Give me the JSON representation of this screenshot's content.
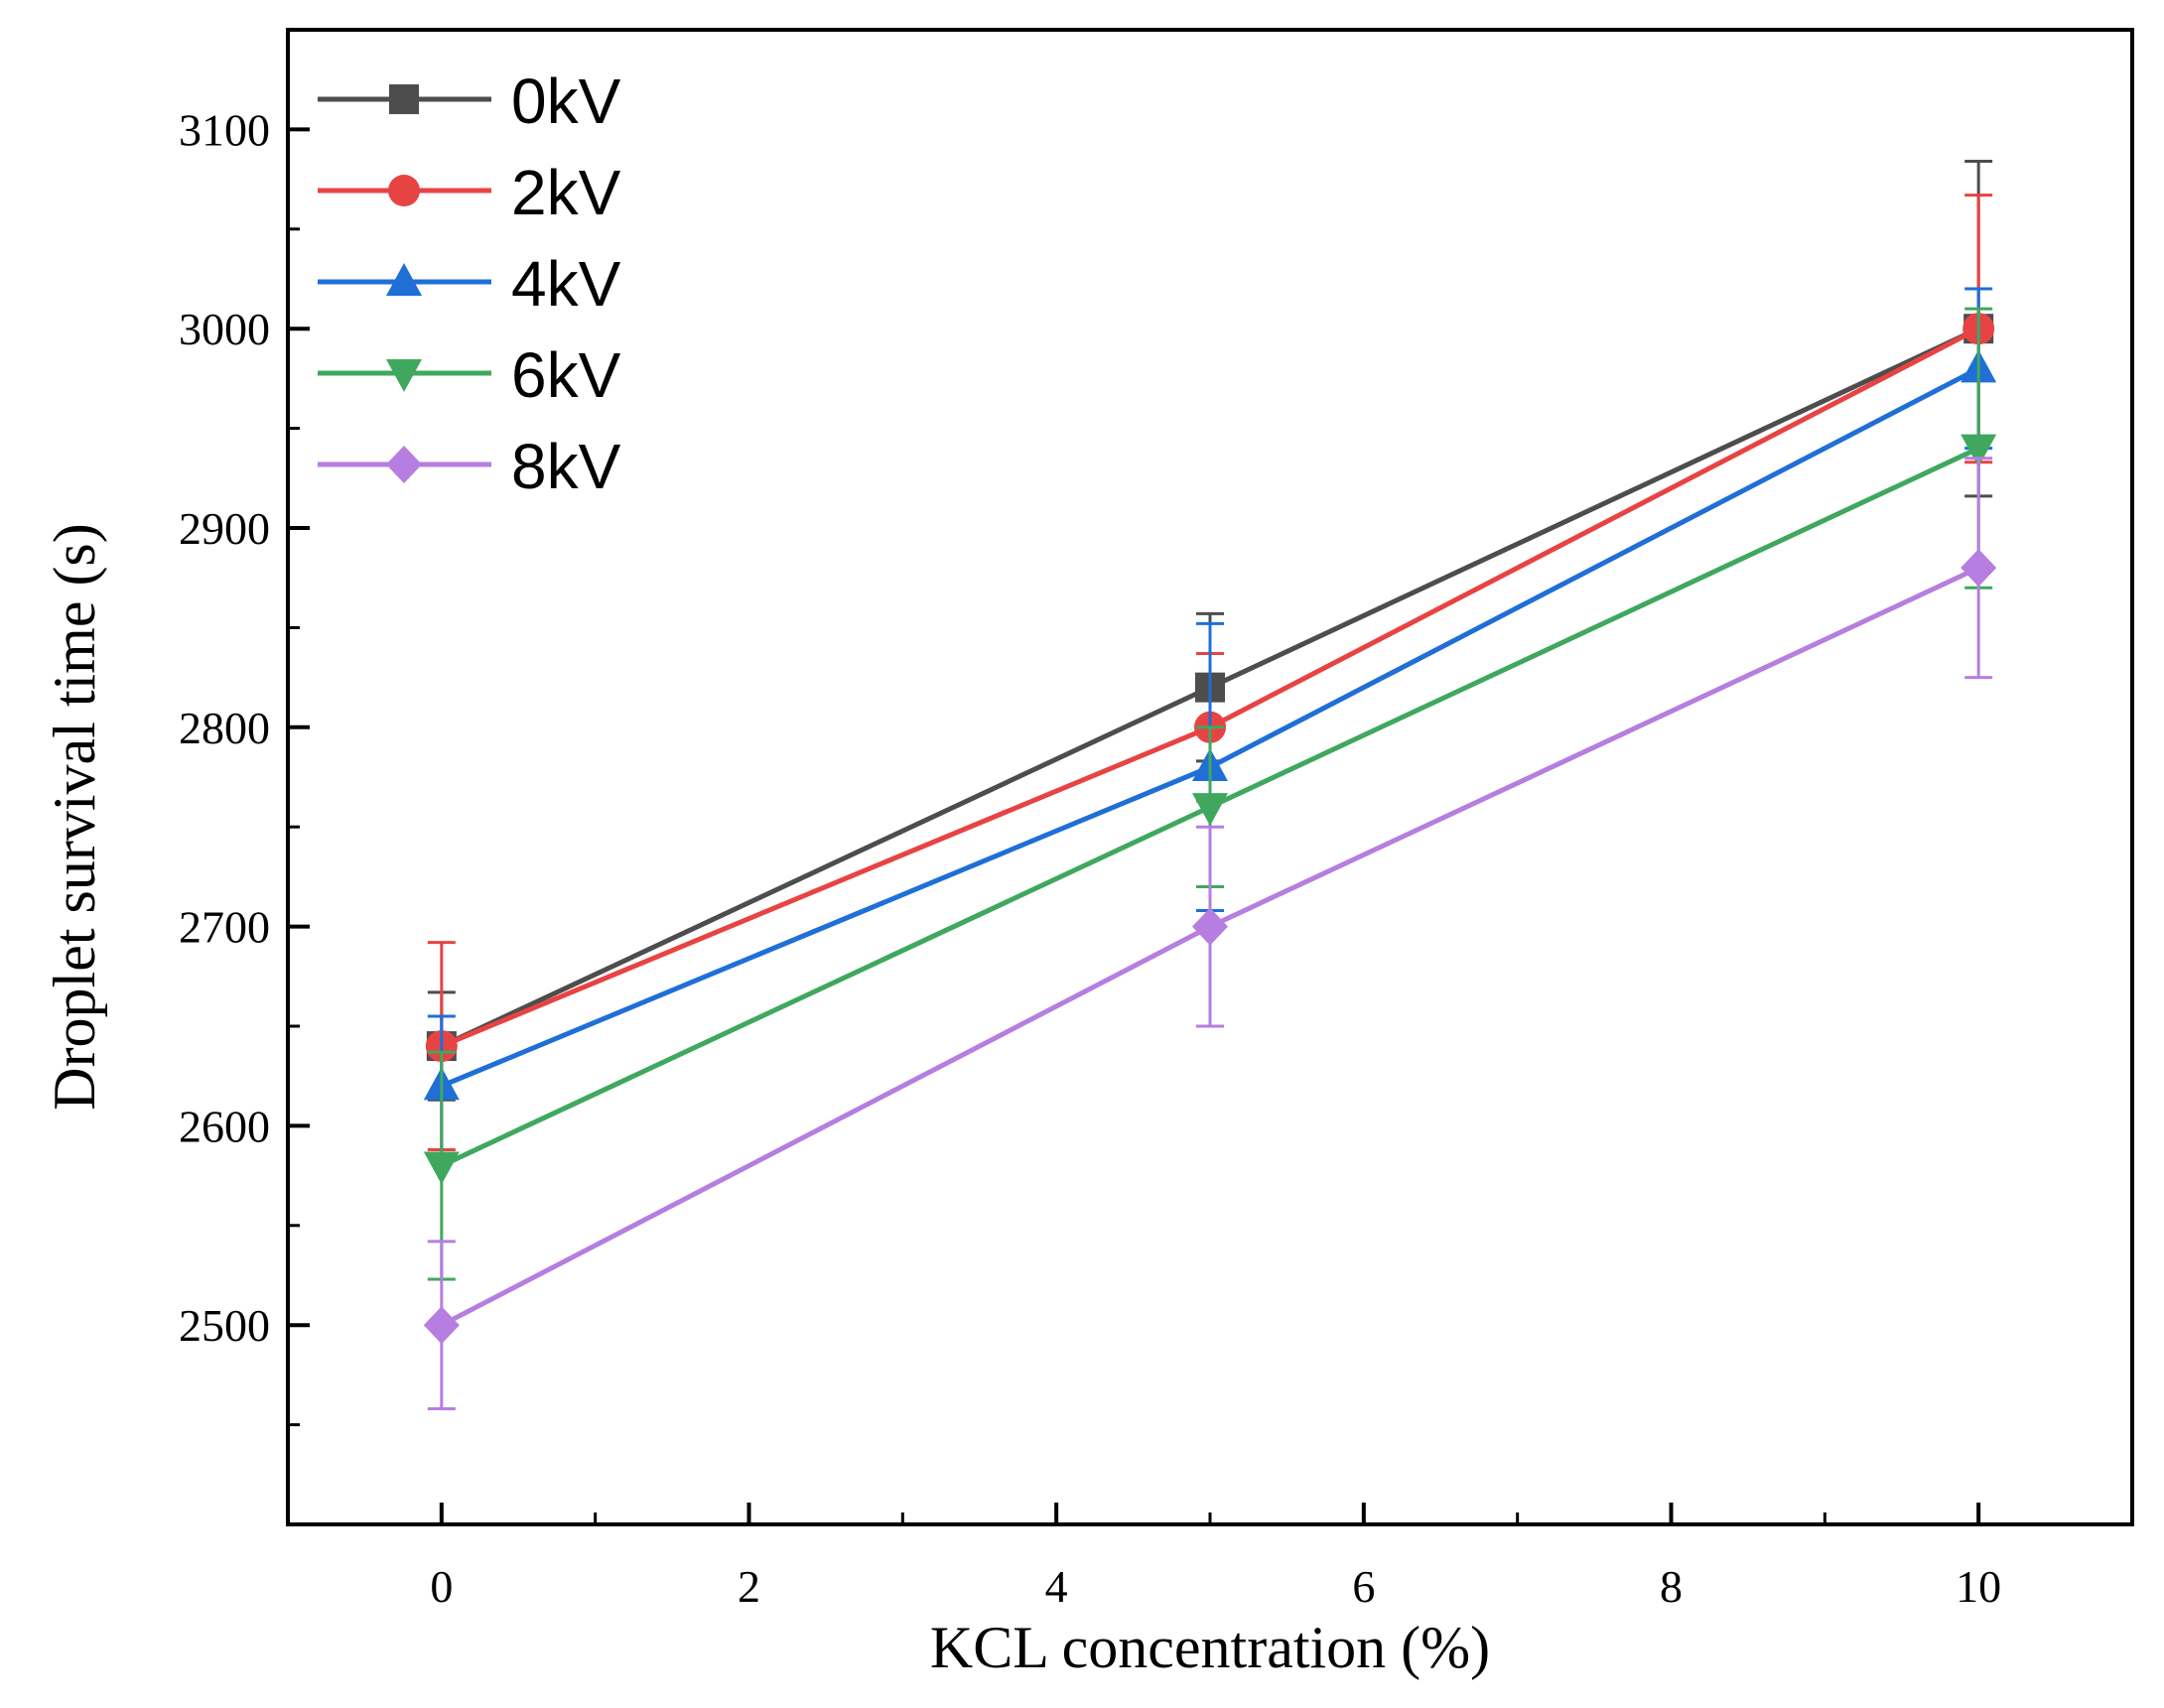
{
  "chart_data": {
    "type": "line",
    "title": "",
    "xlabel": "KCL concentration (%)",
    "ylabel": "Droplet survival time (s)",
    "xlim": [
      -1,
      11
    ],
    "ylim": [
      2400,
      3150
    ],
    "x_ticks": [
      0,
      2,
      4,
      6,
      8,
      10
    ],
    "y_ticks": [
      2500,
      2600,
      2700,
      2800,
      2900,
      3000,
      3100
    ],
    "grid": false,
    "legend_position": "top-left",
    "error_bars": true,
    "series": [
      {
        "name": "0kV",
        "color": "#4d4d4d",
        "marker": "square",
        "x": [
          0,
          5,
          10
        ],
        "y": [
          2640,
          2820,
          3000
        ],
        "err": [
          27,
          37,
          84
        ]
      },
      {
        "name": "2kV",
        "color": "#e84343",
        "marker": "circle",
        "x": [
          0,
          5,
          10
        ],
        "y": [
          2640,
          2800,
          3000
        ],
        "err": [
          52,
          37,
          67
        ]
      },
      {
        "name": "4kV",
        "color": "#1f6fd6",
        "marker": "triangle-up",
        "x": [
          0,
          5,
          10
        ],
        "y": [
          2620,
          2780,
          2980
        ],
        "err": [
          35,
          72,
          40
        ]
      },
      {
        "name": "6kV",
        "color": "#3fa85e",
        "marker": "triangle-down",
        "x": [
          0,
          5,
          10
        ],
        "y": [
          2580,
          2760,
          2940
        ],
        "err": [
          57,
          40,
          70
        ]
      },
      {
        "name": "8kV",
        "color": "#b57ee0",
        "marker": "diamond",
        "x": [
          0,
          5,
          10
        ],
        "y": [
          2500,
          2700,
          2880
        ],
        "err": [
          42,
          50,
          55
        ]
      }
    ]
  }
}
